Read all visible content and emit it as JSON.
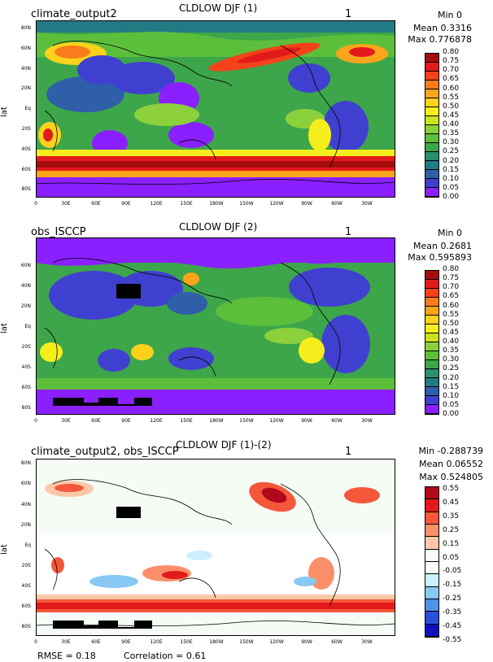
{
  "panels": [
    {
      "title": "CLDLOW DJF (1)",
      "name": "climate_output2",
      "index_label": "1",
      "min": "Min 0",
      "mean": "Mean 0.3316",
      "max": "Max 0.776878",
      "colorbar_labels": [
        "0.80",
        "0.75",
        "0.70",
        "0.65",
        "0.60",
        "0.55",
        "0.50",
        "0.45",
        "0.40",
        "0.35",
        "0.30",
        "0.25",
        "0.20",
        "0.15",
        "0.10",
        "0.05",
        "0.00"
      ],
      "colorbar_colors": [
        "#a50d0d",
        "#e31a1c",
        "#f4431b",
        "#f97c1c",
        "#fba51c",
        "#fbd11c",
        "#f6ee1c",
        "#c9e41c",
        "#8cd13c",
        "#5cbf3c",
        "#3da64a",
        "#2b8f6a",
        "#227a84",
        "#2e5fa8",
        "#4040d0",
        "#8a1fff"
      ],
      "map_kind": "climate"
    },
    {
      "title": "CLDLOW DJF (2)",
      "name": "obs_ISCCP",
      "index_label": "1",
      "min": "Min 0",
      "mean": "Mean 0.2681",
      "max": "Max 0.595893",
      "colorbar_labels": [
        "0.80",
        "0.75",
        "0.70",
        "0.65",
        "0.60",
        "0.55",
        "0.50",
        "0.45",
        "0.40",
        "0.35",
        "0.30",
        "0.25",
        "0.20",
        "0.15",
        "0.10",
        "0.05",
        "0.00"
      ],
      "colorbar_colors": [
        "#a50d0d",
        "#e31a1c",
        "#f4431b",
        "#f97c1c",
        "#fba51c",
        "#fbd11c",
        "#f6ee1c",
        "#c9e41c",
        "#8cd13c",
        "#5cbf3c",
        "#3da64a",
        "#2b8f6a",
        "#227a84",
        "#2e5fa8",
        "#4040d0",
        "#8a1fff"
      ],
      "map_kind": "obs"
    },
    {
      "title": "CLDLOW DJF (1)-(2)",
      "name": "climate_output2, obs_ISCCP",
      "index_label": "1",
      "min": "Min -0.288739",
      "mean": "Mean 0.06552",
      "max": "Max 0.524805",
      "colorbar_labels": [
        "0.55",
        "0.45",
        "0.35",
        "0.25",
        "0.15",
        "0.05",
        "-0.05",
        "-0.15",
        "-0.25",
        "-0.35",
        "-0.45",
        "-0.55"
      ],
      "colorbar_colors": [
        "#b2071c",
        "#e31a1c",
        "#f4573a",
        "#fa8f6a",
        "#fcc8a8",
        "#f5fbf5",
        "#ffffff",
        "#ccefff",
        "#88c8f5",
        "#4f92e8",
        "#2a4fd8",
        "#1010c0"
      ],
      "map_kind": "diff"
    }
  ],
  "axes": {
    "ylabel": "lat",
    "lat_ticks": [
      "80N",
      "60N",
      "40N",
      "20N",
      "Eq",
      "20S",
      "40S",
      "60S",
      "80S"
    ],
    "lon_ticks": [
      "0",
      "30E",
      "60E",
      "90E",
      "120E",
      "150E",
      "180W",
      "150W",
      "120W",
      "90W",
      "60W",
      "30W"
    ]
  },
  "footer": {
    "rmse": "RMSE = 0.18",
    "correlation": "Correlation = 0.61"
  },
  "chart_data": [
    {
      "type": "heatmap",
      "title": "CLDLOW DJF (1)",
      "series_name": "climate_output2",
      "ylabel": "lat",
      "x_ticks": [
        "0",
        "30E",
        "60E",
        "90E",
        "120E",
        "150E",
        "180W",
        "150W",
        "120W",
        "90W",
        "60W",
        "30W"
      ],
      "y_ticks": [
        "80N",
        "60N",
        "40N",
        "20N",
        "Eq",
        "20S",
        "40S",
        "60S",
        "80S"
      ],
      "stats": {
        "min": 0,
        "mean": 0.3316,
        "max": 0.776878
      },
      "color_levels": [
        0.0,
        0.05,
        0.1,
        0.15,
        0.2,
        0.25,
        0.3,
        0.35,
        0.4,
        0.45,
        0.5,
        0.55,
        0.6,
        0.65,
        0.7,
        0.75,
        0.8
      ]
    },
    {
      "type": "heatmap",
      "title": "CLDLOW DJF (2)",
      "series_name": "obs_ISCCP",
      "ylabel": "lat",
      "x_ticks": [
        "0",
        "30E",
        "60E",
        "90E",
        "120E",
        "150E",
        "180W",
        "150W",
        "120W",
        "90W",
        "60W",
        "30W"
      ],
      "y_ticks": [
        "80N",
        "60N",
        "40N",
        "20N",
        "Eq",
        "20S",
        "40S",
        "60S",
        "80S"
      ],
      "stats": {
        "min": 0,
        "mean": 0.2681,
        "max": 0.595893
      },
      "color_levels": [
        0.0,
        0.05,
        0.1,
        0.15,
        0.2,
        0.25,
        0.3,
        0.35,
        0.4,
        0.45,
        0.5,
        0.55,
        0.6,
        0.65,
        0.7,
        0.75,
        0.8
      ]
    },
    {
      "type": "heatmap",
      "title": "CLDLOW DJF (1)-(2)",
      "series_name": "climate_output2, obs_ISCCP",
      "ylabel": "lat",
      "x_ticks": [
        "0",
        "30E",
        "60E",
        "90E",
        "120E",
        "150E",
        "180W",
        "150W",
        "120W",
        "90W",
        "60W",
        "30W"
      ],
      "y_ticks": [
        "80N",
        "60N",
        "40N",
        "20N",
        "Eq",
        "20S",
        "40S",
        "60S",
        "80S"
      ],
      "stats": {
        "min": -0.288739,
        "mean": 0.06552,
        "max": 0.524805,
        "rmse": 0.18,
        "correlation": 0.61
      },
      "color_levels": [
        -0.55,
        -0.45,
        -0.35,
        -0.25,
        -0.15,
        -0.05,
        0.05,
        0.15,
        0.25,
        0.35,
        0.45,
        0.55
      ]
    }
  ]
}
